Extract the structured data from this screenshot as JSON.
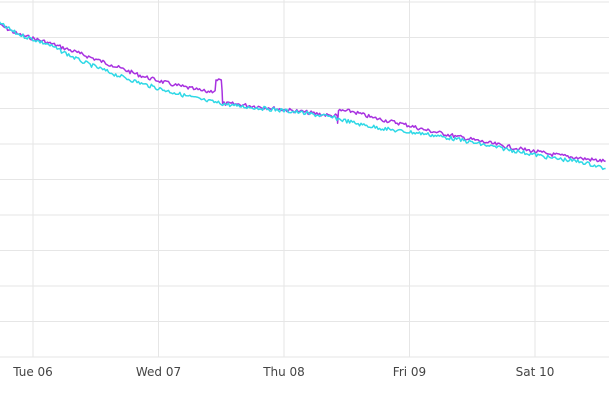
{
  "chart_data": {
    "type": "line",
    "title": "",
    "xlabel": "",
    "ylabel": "",
    "grid": true,
    "x_tick_labels": [
      "Tue 06",
      "Wed 07",
      "Thu 08",
      "Fri 09",
      "Sat 10"
    ],
    "colors": {
      "series_1": "#a832e0",
      "series_2": "#2fd8e6",
      "grid": "#e6e6e6"
    },
    "series": [
      {
        "key": "series_1",
        "points": [
          [
            "2024-02-05T17:00",
            0.935
          ],
          [
            "2024-02-05T21:00",
            0.905
          ],
          [
            "2024-02-06T03:00",
            0.88
          ],
          [
            "2024-02-06T09:00",
            0.85
          ],
          [
            "2024-02-06T15:00",
            0.818
          ],
          [
            "2024-02-06T21:00",
            0.786
          ],
          [
            "2024-02-07T03:00",
            0.762
          ],
          [
            "2024-02-07T07:00",
            0.75
          ],
          [
            "2024-02-07T09:00",
            0.743
          ],
          [
            "2024-02-07T10:50",
            0.746
          ],
          [
            "2024-02-07T11:00",
            0.776
          ],
          [
            "2024-02-07T12:00",
            0.776
          ],
          [
            "2024-02-07T12:10",
            0.745
          ],
          [
            "2024-02-07T12:15",
            0.71
          ],
          [
            "2024-02-07T15:00",
            0.708
          ],
          [
            "2024-02-07T21:00",
            0.698
          ],
          [
            "2024-02-08T03:00",
            0.688
          ],
          [
            "2024-02-08T09:00",
            0.676
          ],
          [
            "2024-02-08T10:10",
            0.676
          ],
          [
            "2024-02-08T10:15",
            0.655
          ],
          [
            "2024-02-08T10:25",
            0.69
          ],
          [
            "2024-02-08T13:00",
            0.688
          ],
          [
            "2024-02-08T17:00",
            0.67
          ],
          [
            "2024-02-08T23:00",
            0.652
          ],
          [
            "2024-02-09T03:00",
            0.636
          ],
          [
            "2024-02-09T09:00",
            0.618
          ],
          [
            "2024-02-09T15:00",
            0.6
          ],
          [
            "2024-02-09T21:00",
            0.583
          ],
          [
            "2024-02-10T03:00",
            0.568
          ],
          [
            "2024-02-10T09:00",
            0.556
          ],
          [
            "2024-02-10T13:30",
            0.548
          ]
        ]
      },
      {
        "key": "series_2",
        "points": [
          [
            "2024-02-05T17:00",
            0.94
          ],
          [
            "2024-02-05T21:00",
            0.905
          ],
          [
            "2024-02-06T03:00",
            0.875
          ],
          [
            "2024-02-06T09:00",
            0.83
          ],
          [
            "2024-02-06T15:00",
            0.795
          ],
          [
            "2024-02-06T21:00",
            0.765
          ],
          [
            "2024-02-07T03:00",
            0.74
          ],
          [
            "2024-02-07T09:00",
            0.718
          ],
          [
            "2024-02-07T15:00",
            0.703
          ],
          [
            "2024-02-07T21:00",
            0.695
          ],
          [
            "2024-02-08T03:00",
            0.685
          ],
          [
            "2024-02-08T09:00",
            0.672
          ],
          [
            "2024-02-08T15:00",
            0.65
          ],
          [
            "2024-02-08T21:00",
            0.635
          ],
          [
            "2024-02-09T03:00",
            0.625
          ],
          [
            "2024-02-09T09:00",
            0.61
          ],
          [
            "2024-02-09T15:00",
            0.592
          ],
          [
            "2024-02-09T21:00",
            0.575
          ],
          [
            "2024-02-10T03:00",
            0.558
          ],
          [
            "2024-02-10T09:00",
            0.546
          ],
          [
            "2024-02-10T13:30",
            0.528
          ]
        ]
      }
    ]
  }
}
